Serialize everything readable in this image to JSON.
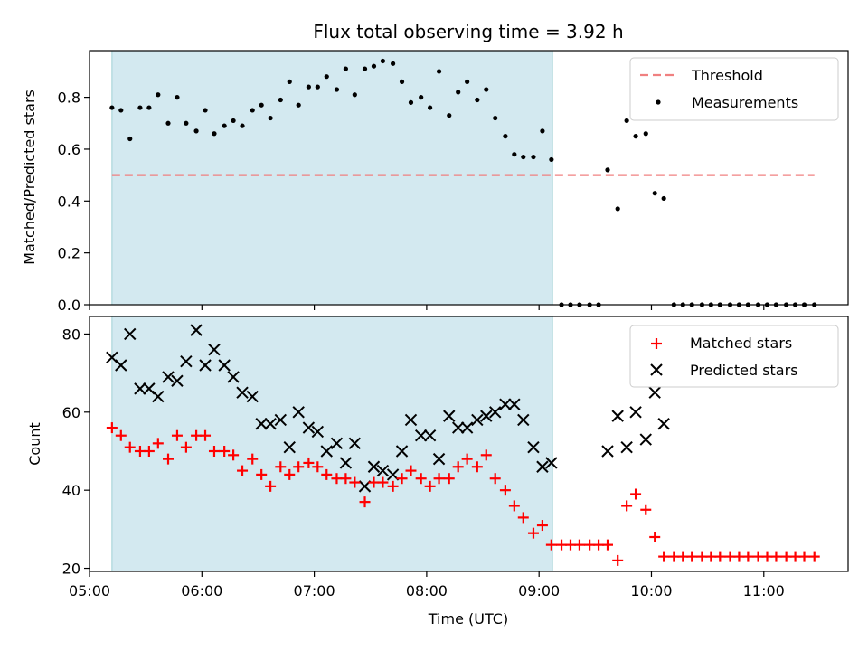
{
  "figure": {
    "title": "Flux total observing time = 3.92 h",
    "background": "#ffffff"
  },
  "chart_data": [
    {
      "type": "scatter",
      "panel": "top",
      "ylabel": "Matched/Predicted stars",
      "xlabel": "",
      "ylim": [
        0.0,
        0.98
      ],
      "xlim": [
        5.0,
        11.75
      ],
      "yticks": [
        0.0,
        0.2,
        0.4,
        0.6,
        0.8
      ],
      "ytick_labels": [
        "0.0",
        "0.2",
        "0.4",
        "0.6",
        "0.8"
      ],
      "xticks": [
        5.0,
        6.0,
        7.0,
        8.0,
        9.0,
        10.0,
        11.0
      ],
      "shaded_interval": {
        "x_start": 5.2,
        "x_end": 9.12,
        "color": "#d3e9f0"
      },
      "legend": {
        "position": "upper right",
        "entries": [
          "Threshold",
          "Measurements"
        ]
      },
      "threshold": {
        "name": "Threshold",
        "y": 0.5,
        "x_start": 5.2,
        "x_end": 11.45,
        "color": "#f08080",
        "style": "dashed"
      },
      "series": [
        {
          "name": "Measurements",
          "color": "#000000",
          "marker": "dot",
          "points": [
            [
              5.2,
              0.76
            ],
            [
              5.28,
              0.75
            ],
            [
              5.36,
              0.64
            ],
            [
              5.45,
              0.76
            ],
            [
              5.53,
              0.76
            ],
            [
              5.61,
              0.81
            ],
            [
              5.7,
              0.7
            ],
            [
              5.78,
              0.8
            ],
            [
              5.86,
              0.7
            ],
            [
              5.95,
              0.67
            ],
            [
              6.03,
              0.75
            ],
            [
              6.11,
              0.66
            ],
            [
              6.2,
              0.69
            ],
            [
              6.28,
              0.71
            ],
            [
              6.36,
              0.69
            ],
            [
              6.45,
              0.75
            ],
            [
              6.53,
              0.77
            ],
            [
              6.61,
              0.72
            ],
            [
              6.7,
              0.79
            ],
            [
              6.78,
              0.86
            ],
            [
              6.86,
              0.77
            ],
            [
              6.95,
              0.84
            ],
            [
              7.03,
              0.84
            ],
            [
              7.11,
              0.88
            ],
            [
              7.2,
              0.83
            ],
            [
              7.28,
              0.91
            ],
            [
              7.36,
              0.81
            ],
            [
              7.45,
              0.91
            ],
            [
              7.53,
              0.92
            ],
            [
              7.61,
              0.94
            ],
            [
              7.7,
              0.93
            ],
            [
              7.78,
              0.86
            ],
            [
              7.86,
              0.78
            ],
            [
              7.95,
              0.8
            ],
            [
              8.03,
              0.76
            ],
            [
              8.11,
              0.9
            ],
            [
              8.2,
              0.73
            ],
            [
              8.28,
              0.82
            ],
            [
              8.36,
              0.86
            ],
            [
              8.45,
              0.79
            ],
            [
              8.53,
              0.83
            ],
            [
              8.61,
              0.72
            ],
            [
              8.7,
              0.65
            ],
            [
              8.78,
              0.58
            ],
            [
              8.86,
              0.57
            ],
            [
              8.95,
              0.57
            ],
            [
              9.03,
              0.67
            ],
            [
              9.11,
              0.56
            ],
            [
              9.2,
              0.0
            ],
            [
              9.28,
              0.0
            ],
            [
              9.36,
              0.0
            ],
            [
              9.45,
              0.0
            ],
            [
              9.53,
              0.0
            ],
            [
              9.61,
              0.52
            ],
            [
              9.7,
              0.37
            ],
            [
              9.78,
              0.71
            ],
            [
              9.86,
              0.65
            ],
            [
              9.95,
              0.66
            ],
            [
              10.03,
              0.43
            ],
            [
              10.11,
              0.41
            ],
            [
              10.2,
              0.0
            ],
            [
              10.28,
              0.0
            ],
            [
              10.36,
              0.0
            ],
            [
              10.45,
              0.0
            ],
            [
              10.53,
              0.0
            ],
            [
              10.61,
              0.0
            ],
            [
              10.7,
              0.0
            ],
            [
              10.78,
              0.0
            ],
            [
              10.86,
              0.0
            ],
            [
              10.95,
              0.0
            ],
            [
              11.03,
              0.0
            ],
            [
              11.11,
              0.0
            ],
            [
              11.2,
              0.0
            ],
            [
              11.28,
              0.0
            ],
            [
              11.36,
              0.0
            ],
            [
              11.45,
              0.0
            ]
          ]
        }
      ]
    },
    {
      "type": "scatter",
      "panel": "bottom",
      "ylabel": "Count",
      "xlabel": "Time (UTC)",
      "ylim": [
        19.2,
        84.5
      ],
      "xlim": [
        5.0,
        11.75
      ],
      "yticks": [
        20,
        40,
        60,
        80
      ],
      "ytick_labels": [
        "20",
        "40",
        "60",
        "80"
      ],
      "xticks": [
        5.0,
        6.0,
        7.0,
        8.0,
        9.0,
        10.0,
        11.0
      ],
      "xtick_labels": [
        "05:00",
        "06:00",
        "07:00",
        "08:00",
        "09:00",
        "10:00",
        "11:00"
      ],
      "shaded_interval": {
        "x_start": 5.2,
        "x_end": 9.12,
        "color": "#d3e9f0"
      },
      "legend": {
        "position": "upper right",
        "entries": [
          "Matched stars",
          "Predicted stars"
        ]
      },
      "series": [
        {
          "name": "Matched stars",
          "color": "#ff0000",
          "marker": "plus",
          "points": [
            [
              5.2,
              56
            ],
            [
              5.28,
              54
            ],
            [
              5.36,
              51
            ],
            [
              5.45,
              50
            ],
            [
              5.53,
              50
            ],
            [
              5.61,
              52
            ],
            [
              5.7,
              48
            ],
            [
              5.78,
              54
            ],
            [
              5.86,
              51
            ],
            [
              5.95,
              54
            ],
            [
              6.03,
              54
            ],
            [
              6.11,
              50
            ],
            [
              6.2,
              50
            ],
            [
              6.28,
              49
            ],
            [
              6.36,
              45
            ],
            [
              6.45,
              48
            ],
            [
              6.53,
              44
            ],
            [
              6.61,
              41
            ],
            [
              6.7,
              46
            ],
            [
              6.78,
              44
            ],
            [
              6.86,
              46
            ],
            [
              6.95,
              47
            ],
            [
              7.03,
              46
            ],
            [
              7.11,
              44
            ],
            [
              7.2,
              43
            ],
            [
              7.28,
              43
            ],
            [
              7.36,
              42
            ],
            [
              7.45,
              37
            ],
            [
              7.53,
              42
            ],
            [
              7.61,
              42
            ],
            [
              7.7,
              41
            ],
            [
              7.78,
              43
            ],
            [
              7.86,
              45
            ],
            [
              7.95,
              43
            ],
            [
              8.03,
              41
            ],
            [
              8.11,
              43
            ],
            [
              8.2,
              43
            ],
            [
              8.28,
              46
            ],
            [
              8.36,
              48
            ],
            [
              8.45,
              46
            ],
            [
              8.53,
              49
            ],
            [
              8.61,
              43
            ],
            [
              8.7,
              40
            ],
            [
              8.78,
              36
            ],
            [
              8.86,
              33
            ],
            [
              8.95,
              29
            ],
            [
              9.03,
              31
            ],
            [
              9.11,
              26
            ],
            [
              9.2,
              26
            ],
            [
              9.28,
              26
            ],
            [
              9.36,
              26
            ],
            [
              9.45,
              26
            ],
            [
              9.53,
              26
            ],
            [
              9.61,
              26
            ],
            [
              9.7,
              22
            ],
            [
              9.78,
              36
            ],
            [
              9.86,
              39
            ],
            [
              9.95,
              35
            ],
            [
              10.03,
              28
            ],
            [
              10.11,
              23
            ],
            [
              10.2,
              23
            ],
            [
              10.28,
              23
            ],
            [
              10.36,
              23
            ],
            [
              10.45,
              23
            ],
            [
              10.53,
              23
            ],
            [
              10.61,
              23
            ],
            [
              10.7,
              23
            ],
            [
              10.78,
              23
            ],
            [
              10.86,
              23
            ],
            [
              10.95,
              23
            ],
            [
              11.03,
              23
            ],
            [
              11.11,
              23
            ],
            [
              11.2,
              23
            ],
            [
              11.28,
              23
            ],
            [
              11.36,
              23
            ],
            [
              11.45,
              23
            ]
          ]
        },
        {
          "name": "Predicted stars",
          "color": "#000000",
          "marker": "x",
          "points": [
            [
              5.2,
              74
            ],
            [
              5.28,
              72
            ],
            [
              5.36,
              80
            ],
            [
              5.45,
              66
            ],
            [
              5.53,
              66
            ],
            [
              5.61,
              64
            ],
            [
              5.7,
              69
            ],
            [
              5.78,
              68
            ],
            [
              5.86,
              73
            ],
            [
              5.95,
              81
            ],
            [
              6.03,
              72
            ],
            [
              6.11,
              76
            ],
            [
              6.2,
              72
            ],
            [
              6.28,
              69
            ],
            [
              6.36,
              65
            ],
            [
              6.45,
              64
            ],
            [
              6.53,
              57
            ],
            [
              6.61,
              57
            ],
            [
              6.7,
              58
            ],
            [
              6.78,
              51
            ],
            [
              6.86,
              60
            ],
            [
              6.95,
              56
            ],
            [
              7.03,
              55
            ],
            [
              7.11,
              50
            ],
            [
              7.2,
              52
            ],
            [
              7.28,
              47
            ],
            [
              7.36,
              52
            ],
            [
              7.45,
              41
            ],
            [
              7.53,
              46
            ],
            [
              7.61,
              45
            ],
            [
              7.7,
              44
            ],
            [
              7.78,
              50
            ],
            [
              7.86,
              58
            ],
            [
              7.95,
              54
            ],
            [
              8.03,
              54
            ],
            [
              8.11,
              48
            ],
            [
              8.2,
              59
            ],
            [
              8.28,
              56
            ],
            [
              8.36,
              56
            ],
            [
              8.45,
              58
            ],
            [
              8.53,
              59
            ],
            [
              8.61,
              60
            ],
            [
              8.7,
              62
            ],
            [
              8.78,
              62
            ],
            [
              8.86,
              58
            ],
            [
              8.95,
              51
            ],
            [
              9.03,
              46
            ],
            [
              9.11,
              47
            ],
            [
              9.61,
              50
            ],
            [
              9.7,
              59
            ],
            [
              9.78,
              51
            ],
            [
              9.86,
              60
            ],
            [
              9.95,
              53
            ],
            [
              10.03,
              65
            ],
            [
              10.11,
              57
            ]
          ]
        }
      ]
    }
  ]
}
